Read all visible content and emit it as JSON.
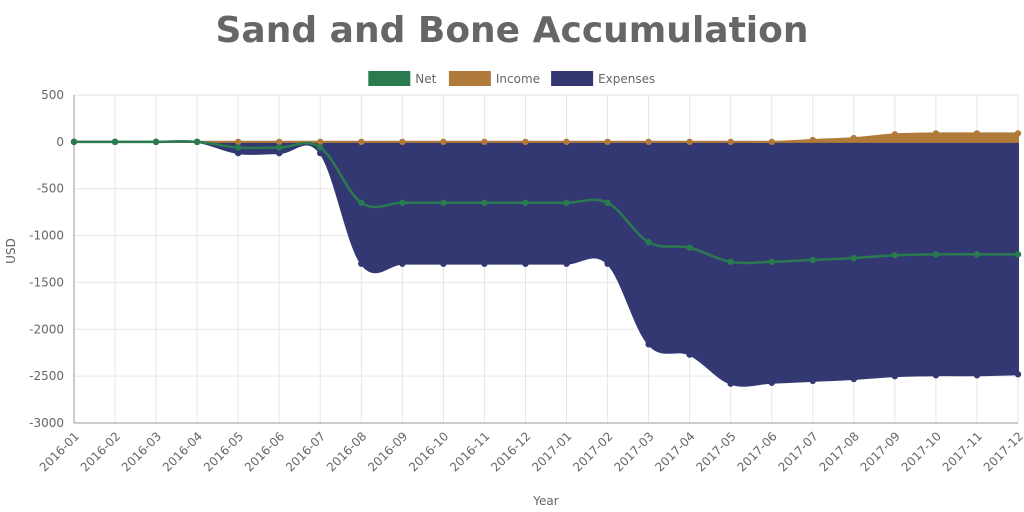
{
  "chart_data": {
    "type": "area",
    "title": "Sand and Bone Accumulation",
    "xlabel": "Year",
    "ylabel": "USD",
    "ylim": [
      -3000,
      500
    ],
    "yticks": [
      500,
      0,
      -500,
      -1000,
      -1500,
      -2000,
      -2500,
      -3000
    ],
    "grid": true,
    "legend_position": "top-center",
    "x": [
      "2016-01",
      "2016-02",
      "2016-03",
      "2016-04",
      "2016-05",
      "2016-06",
      "2016-07",
      "2016-08",
      "2016-09",
      "2016-10",
      "2016-11",
      "2016-12",
      "2017-01",
      "2017-02",
      "2017-03",
      "2017-04",
      "2017-05",
      "2017-06",
      "2017-07",
      "2017-08",
      "2017-09",
      "2017-10",
      "2017-11",
      "2017-12"
    ],
    "series": [
      {
        "name": "Net",
        "color": "#2a7a50",
        "type": "line",
        "values": [
          0,
          0,
          0,
          0,
          -60,
          -60,
          -60,
          -650,
          -650,
          -650,
          -650,
          -650,
          -650,
          -650,
          -1070,
          -1130,
          -1280,
          -1280,
          -1260,
          -1240,
          -1210,
          -1200,
          -1200,
          -1200
        ]
      },
      {
        "name": "Income",
        "color": "#b07a3a",
        "type": "area",
        "values": [
          0,
          0,
          0,
          0,
          0,
          0,
          0,
          0,
          0,
          0,
          0,
          0,
          0,
          0,
          0,
          0,
          0,
          0,
          20,
          40,
          80,
          90,
          90,
          90
        ]
      },
      {
        "name": "Expenses",
        "color": "#333873",
        "type": "area",
        "values": [
          0,
          0,
          0,
          0,
          -120,
          -120,
          -120,
          -1300,
          -1300,
          -1300,
          -1300,
          -1300,
          -1300,
          -1300,
          -2160,
          -2270,
          -2580,
          -2570,
          -2550,
          -2530,
          -2500,
          -2490,
          -2490,
          -2480
        ]
      }
    ]
  }
}
